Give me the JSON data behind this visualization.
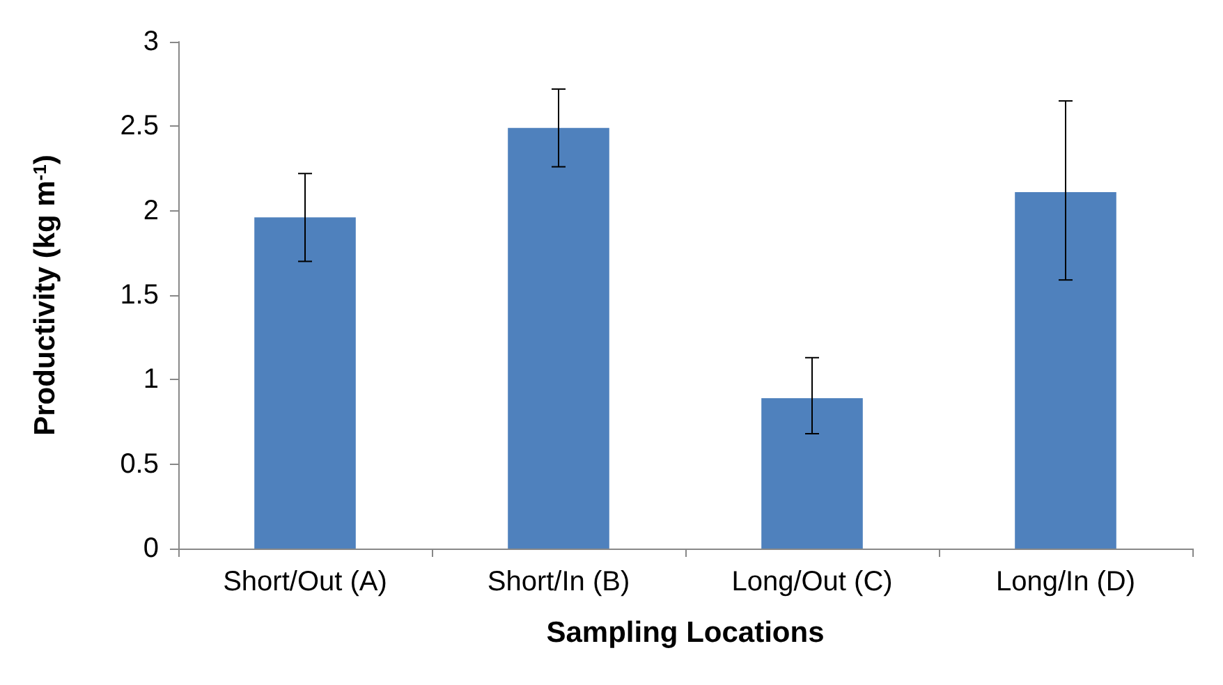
{
  "chart_data": {
    "type": "bar",
    "xlabel": "Sampling Locations",
    "ylabel": "Productivity (kg m$^{-1}$)",
    "categories": [
      "Short/Out (A)",
      "Short/In (B)",
      "Long/Out (C)",
      "Long/In (D)"
    ],
    "values": [
      1.96,
      2.49,
      0.89,
      2.11
    ],
    "color": "#4f81bd",
    "errors": [
      [
        1.7,
        2.22
      ],
      [
        2.26,
        2.72
      ],
      [
        0.68,
        1.13
      ],
      [
        1.59,
        2.65
      ]
    ],
    "ylim": [
      0,
      3
    ],
    "yticks": [
      0,
      0.5,
      1,
      1.5,
      2,
      2.5,
      3
    ],
    "grid": false
  }
}
